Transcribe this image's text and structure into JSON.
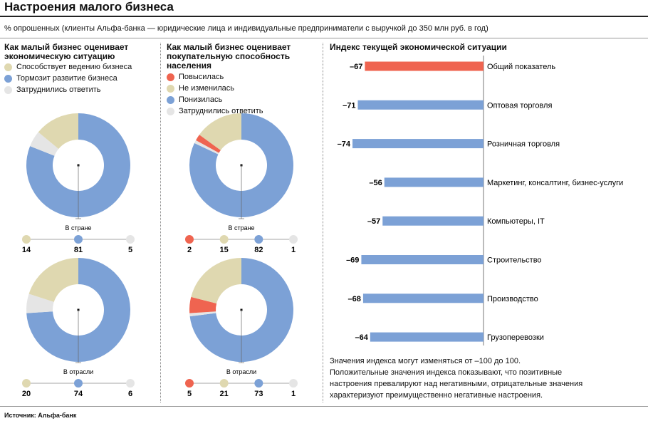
{
  "title": "Настроения малого бизнеса",
  "subtitle": "% опрошенных (клиенты Альфа-банка — юридические лица и индивидуальные предприниматели с выручкой до 350 млн руб. в год)",
  "colors": {
    "beige": "#dfd8b0",
    "blue": "#7ca1d6",
    "light": "#e5e5e5",
    "red": "#ef6450"
  },
  "panel1": {
    "title": "Как малый бизнес оценивает экономическую ситуацию",
    "legend": [
      {
        "label": "Способствует ведению бизнеса",
        "color": "#dfd8b0"
      },
      {
        "label": "Тормозит развитие бизнеса",
        "color": "#7ca1d6"
      },
      {
        "label": "Затруднились ответить",
        "color": "#e5e5e5"
      }
    ]
  },
  "panel2": {
    "title": "Как малый бизнес оценивает покупательную способность населения",
    "legend": [
      {
        "label": "Повысилась",
        "color": "#ef6450"
      },
      {
        "label": "Не изменилась",
        "color": "#dfd8b0"
      },
      {
        "label": "Понизилась",
        "color": "#7ca1d6"
      },
      {
        "label": "Затруднились ответить",
        "color": "#e5e5e5"
      }
    ]
  },
  "panel3": {
    "title": "Индекс текущей экономической ситуации",
    "note": [
      "Значения индекса могут изменяться от –100 до 100.",
      "Положительные значения индекса показывают, что позитивные",
      "настроения превалируют над негативными, отрицательные значения",
      "характеризуют преимущественно негативные настроения."
    ]
  },
  "source": "Источник:  Альфа-банк",
  "chart_data": [
    {
      "type": "pie",
      "panel": "Как малый бизнес оценивает экономическую ситуацию",
      "label": "В стране",
      "values": [
        14,
        81,
        5
      ],
      "labels": [
        "Способствует ведению бизнеса",
        "Тормозит развитие бизнеса",
        "Затруднились ответить"
      ],
      "colors": [
        "#dfd8b0",
        "#7ca1d6",
        "#e5e5e5"
      ]
    },
    {
      "type": "pie",
      "panel": "Как малый бизнес оценивает экономическую ситуацию",
      "label": "В отрасли",
      "values": [
        20,
        74,
        6
      ],
      "labels": [
        "Способствует ведению бизнеса",
        "Тормозит развитие бизнеса",
        "Затруднились ответить"
      ],
      "colors": [
        "#dfd8b0",
        "#7ca1d6",
        "#e5e5e5"
      ]
    },
    {
      "type": "pie",
      "panel": "Как малый бизнес оценивает покупательную способность населения",
      "label": "В стране",
      "values": [
        2,
        15,
        82,
        1
      ],
      "labels": [
        "Повысилась",
        "Не изменилась",
        "Понизилась",
        "Затруднились ответить"
      ],
      "colors": [
        "#ef6450",
        "#dfd8b0",
        "#7ca1d6",
        "#e5e5e5"
      ]
    },
    {
      "type": "pie",
      "panel": "Как малый бизнес оценивает покупательную способность населения",
      "label": "В отрасли",
      "values": [
        5,
        21,
        73,
        1
      ],
      "labels": [
        "Повысилась",
        "Не изменилась",
        "Понизилась",
        "Затруднились ответить"
      ],
      "colors": [
        "#ef6450",
        "#dfd8b0",
        "#7ca1d6",
        "#e5e5e5"
      ]
    },
    {
      "type": "bar",
      "title": "Индекс текущей экономической ситуации",
      "orientation": "horizontal",
      "categories": [
        "Общий показатель",
        "Оптовая торговля",
        "Розничная торговля",
        "Маркетинг, консалтинг, бизнес-услуги",
        "Компьютеры, IT",
        "Строительство",
        "Производство",
        "Грузоперевозки"
      ],
      "values": [
        -67,
        -71,
        -74,
        -56,
        -57,
        -69,
        -68,
        -64
      ],
      "value_labels": [
        "–67",
        "–71",
        "–74",
        "–56",
        "–57",
        "–69",
        "–68",
        "–64"
      ],
      "colors": [
        "#ef6450",
        "#7ca1d6",
        "#7ca1d6",
        "#7ca1d6",
        "#7ca1d6",
        "#7ca1d6",
        "#7ca1d6",
        "#7ca1d6"
      ],
      "xlim": [
        -100,
        0
      ]
    }
  ]
}
